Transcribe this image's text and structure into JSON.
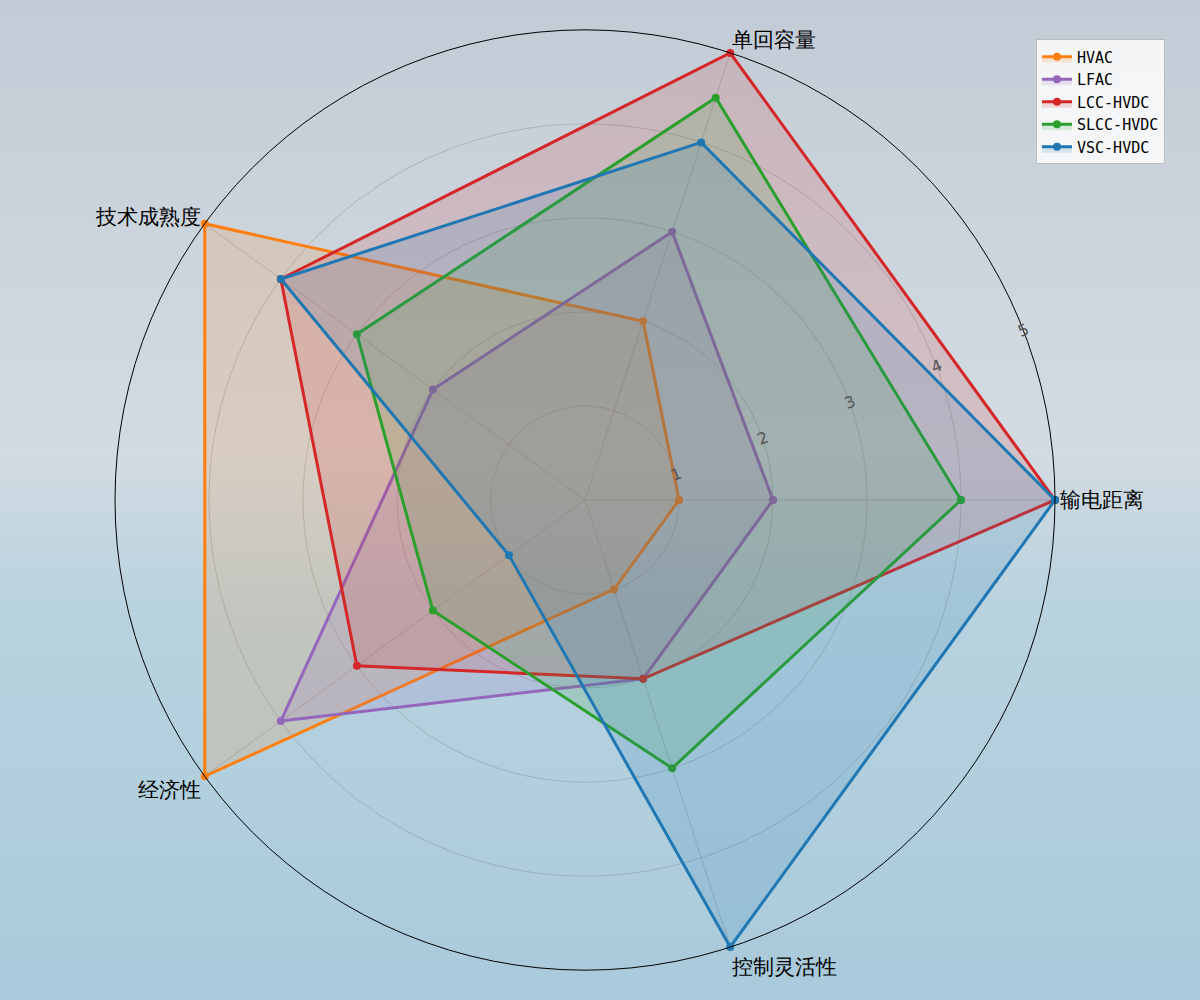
{
  "chart_data": {
    "type": "radar",
    "categories": [
      "输电距离",
      "单回容量",
      "技术成熟度",
      "经济性",
      "控制灵活性"
    ],
    "series": [
      {
        "name": "HVAC",
        "color": "#ff7f0e",
        "marker": "circle",
        "line_style": "solid",
        "values": [
          1,
          2,
          5,
          5,
          1
        ]
      },
      {
        "name": "LFAC",
        "color": "#9467bd",
        "marker": "circle",
        "line_style": "solid",
        "values": [
          2,
          3,
          2,
          4,
          2
        ]
      },
      {
        "name": "LCC-HVDC",
        "color": "#d62728",
        "marker": "circle",
        "line_style": "solid",
        "values": [
          5,
          5,
          4,
          3,
          2
        ]
      },
      {
        "name": "SLCC-HVDC",
        "color": "#2ca02c",
        "marker": "circle",
        "line_style": "solid",
        "values": [
          4,
          4.5,
          3,
          2,
          3
        ]
      },
      {
        "name": "VSC-HVDC",
        "color": "#1f77b4",
        "marker": "circle",
        "line_style": "solid",
        "values": [
          5,
          4,
          4,
          1,
          5
        ]
      }
    ],
    "ylim": [
      0,
      5
    ],
    "yticks": [
      1,
      2,
      3,
      4,
      5
    ],
    "grid": true,
    "legend": "upper right"
  }
}
